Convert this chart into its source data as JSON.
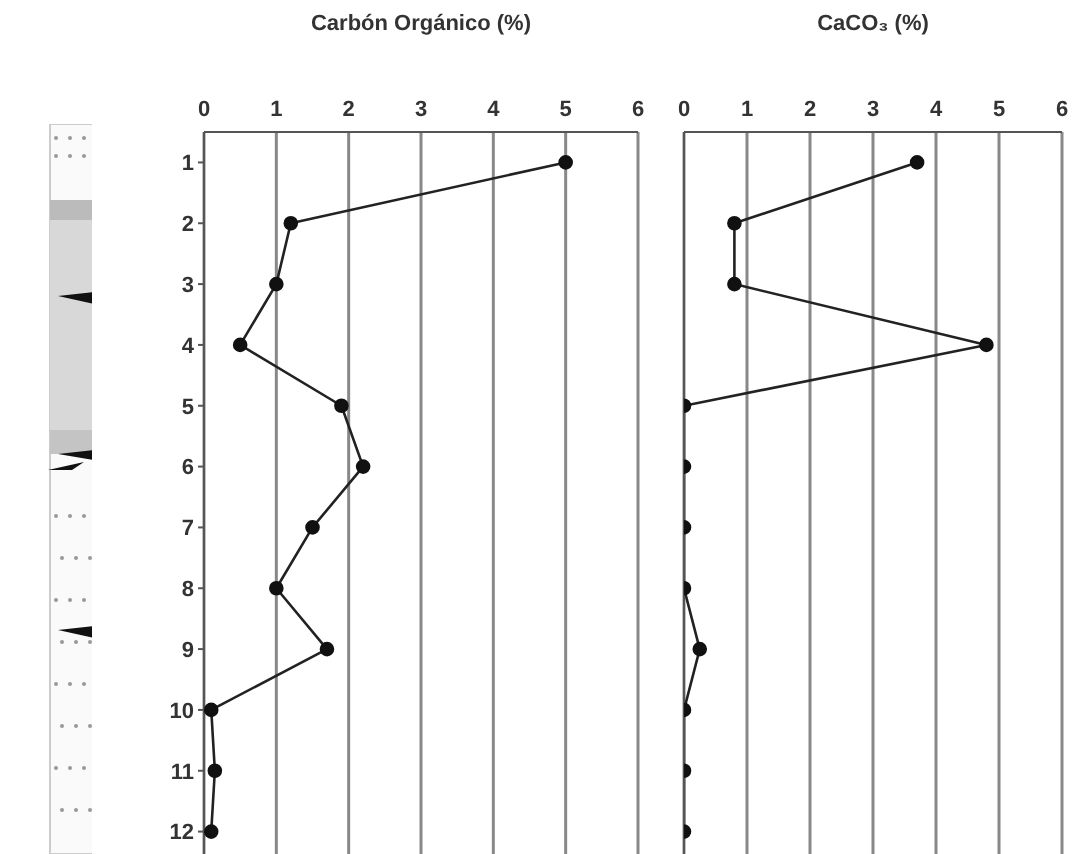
{
  "chart_data": [
    {
      "type": "line",
      "title": "Carbón Orgánico (%)",
      "series": [
        {
          "color": "#222222",
          "x": [
            5.0,
            1.2,
            1.0,
            0.5,
            1.9,
            2.2,
            1.5,
            1.0,
            1.7,
            0.1,
            0.15,
            0.1
          ],
          "values": [
            1,
            2,
            3,
            4,
            5,
            6,
            7,
            8,
            9,
            10,
            11,
            12
          ]
        }
      ],
      "xlim": [
        0,
        6
      ],
      "xticks": [
        0,
        1,
        2,
        3,
        4,
        5,
        6
      ],
      "ylim": [
        12.5,
        0.5
      ],
      "yticks": [
        1,
        2,
        3,
        4,
        5,
        6,
        7,
        8,
        9,
        10,
        11,
        12
      ],
      "grid": "x",
      "marker": "circle"
    },
    {
      "type": "line",
      "title": "CaCO₃ (%)",
      "series": [
        {
          "color": "#222222",
          "x": [
            3.7,
            0.8,
            0.8,
            4.8,
            0,
            0,
            0,
            0,
            0.25,
            0,
            0,
            0
          ],
          "values": [
            1,
            2,
            3,
            4,
            5,
            6,
            7,
            8,
            9,
            10,
            11,
            12
          ]
        }
      ],
      "xlim": [
        0,
        6
      ],
      "xticks": [
        0,
        1,
        2,
        3,
        4,
        5,
        6
      ],
      "ylim": [
        12.5,
        0.5
      ],
      "yticks": [
        1,
        2,
        3,
        4,
        5,
        6,
        7,
        8,
        9,
        10,
        11,
        12
      ],
      "grid": "x",
      "marker": "circle",
      "tick_labels": "x"
    }
  ]
}
